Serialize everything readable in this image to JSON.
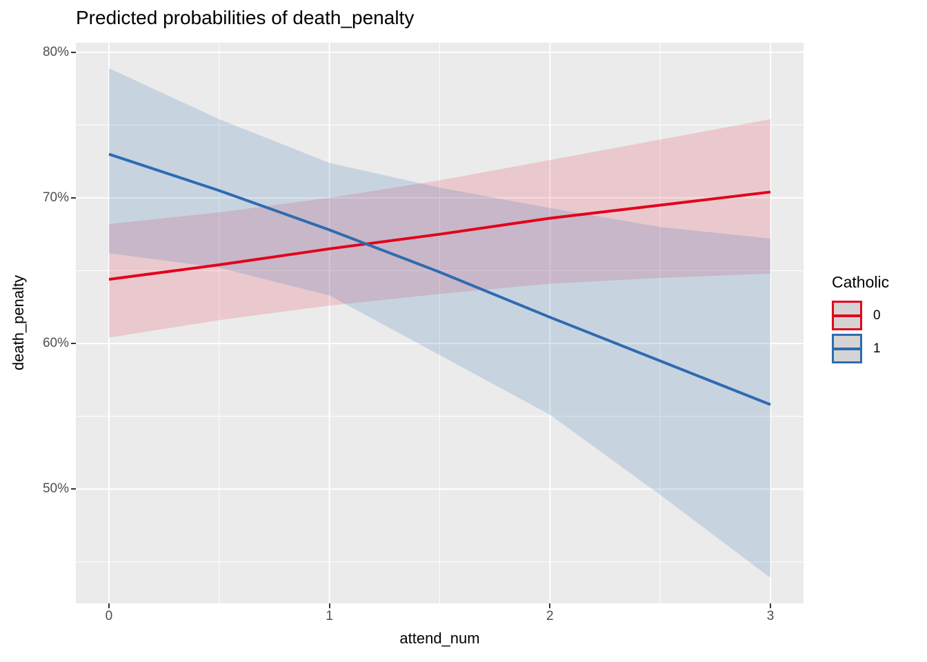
{
  "title": "Predicted probabilities of death_penalty",
  "x_axis": {
    "label": "attend_num",
    "ticks": [
      "0",
      "1",
      "2",
      "3"
    ]
  },
  "y_axis": {
    "label": "death_penalty",
    "ticks": [
      "50%",
      "60%",
      "70%",
      "80%"
    ]
  },
  "legend": {
    "title": "Catholic",
    "items": [
      {
        "label": "0",
        "color": "#E3001B"
      },
      {
        "label": "1",
        "color": "#2E6BB0"
      }
    ],
    "key_fill": "#D4D4D4",
    "position": "right"
  },
  "colors": {
    "background": "#FFFFFF",
    "panel_background": "#EBEBEB",
    "grid": "#FFFFFF",
    "tick_label": "#4D4D4D",
    "tick_mark": "#333333",
    "title_text": "#000000",
    "red_line": "#E3001B",
    "blue_line": "#2E6BB0"
  },
  "chart_data": {
    "type": "line",
    "title": "Predicted probabilities of death_penalty",
    "xlabel": "attend_num",
    "ylabel": "death_penalty",
    "y_unit": "percent",
    "legend_title": "Catholic",
    "legend_position": "right",
    "grid": true,
    "x": [
      0,
      0.5,
      1,
      1.5,
      2,
      2.5,
      3
    ],
    "series": [
      {
        "name": "Catholic = 0",
        "color": "#E3001B",
        "fill_alpha": 0.14,
        "values": [
          64.4,
          65.4,
          66.5,
          67.5,
          68.6,
          69.5,
          70.4
        ],
        "ci_upper": [
          68.2,
          69.0,
          70.0,
          71.2,
          72.6,
          74.0,
          75.4
        ],
        "ci_lower": [
          60.4,
          61.6,
          62.6,
          63.4,
          64.1,
          64.5,
          64.8
        ]
      },
      {
        "name": "Catholic = 1",
        "color": "#2E6BB0",
        "fill_alpha": 0.18,
        "values": [
          73.0,
          70.5,
          67.8,
          64.9,
          61.8,
          58.8,
          55.8
        ],
        "ci_upper": [
          78.9,
          75.4,
          72.4,
          70.7,
          69.3,
          68.0,
          67.2
        ],
        "ci_lower": [
          66.2,
          65.2,
          63.3,
          59.2,
          55.1,
          49.6,
          43.9
        ]
      }
    ],
    "x_range": [
      -0.15,
      3.15
    ],
    "y_range": [
      42.15,
      80.65
    ],
    "x_major": [
      0,
      1,
      2,
      3
    ],
    "x_minor": [
      0.5,
      1.5,
      2.5
    ],
    "y_major": [
      50,
      60,
      70,
      80
    ],
    "y_minor": [
      45,
      55,
      65,
      75
    ],
    "panel_bg": "#EBEBEB",
    "grid_color": "#FFFFFF"
  }
}
